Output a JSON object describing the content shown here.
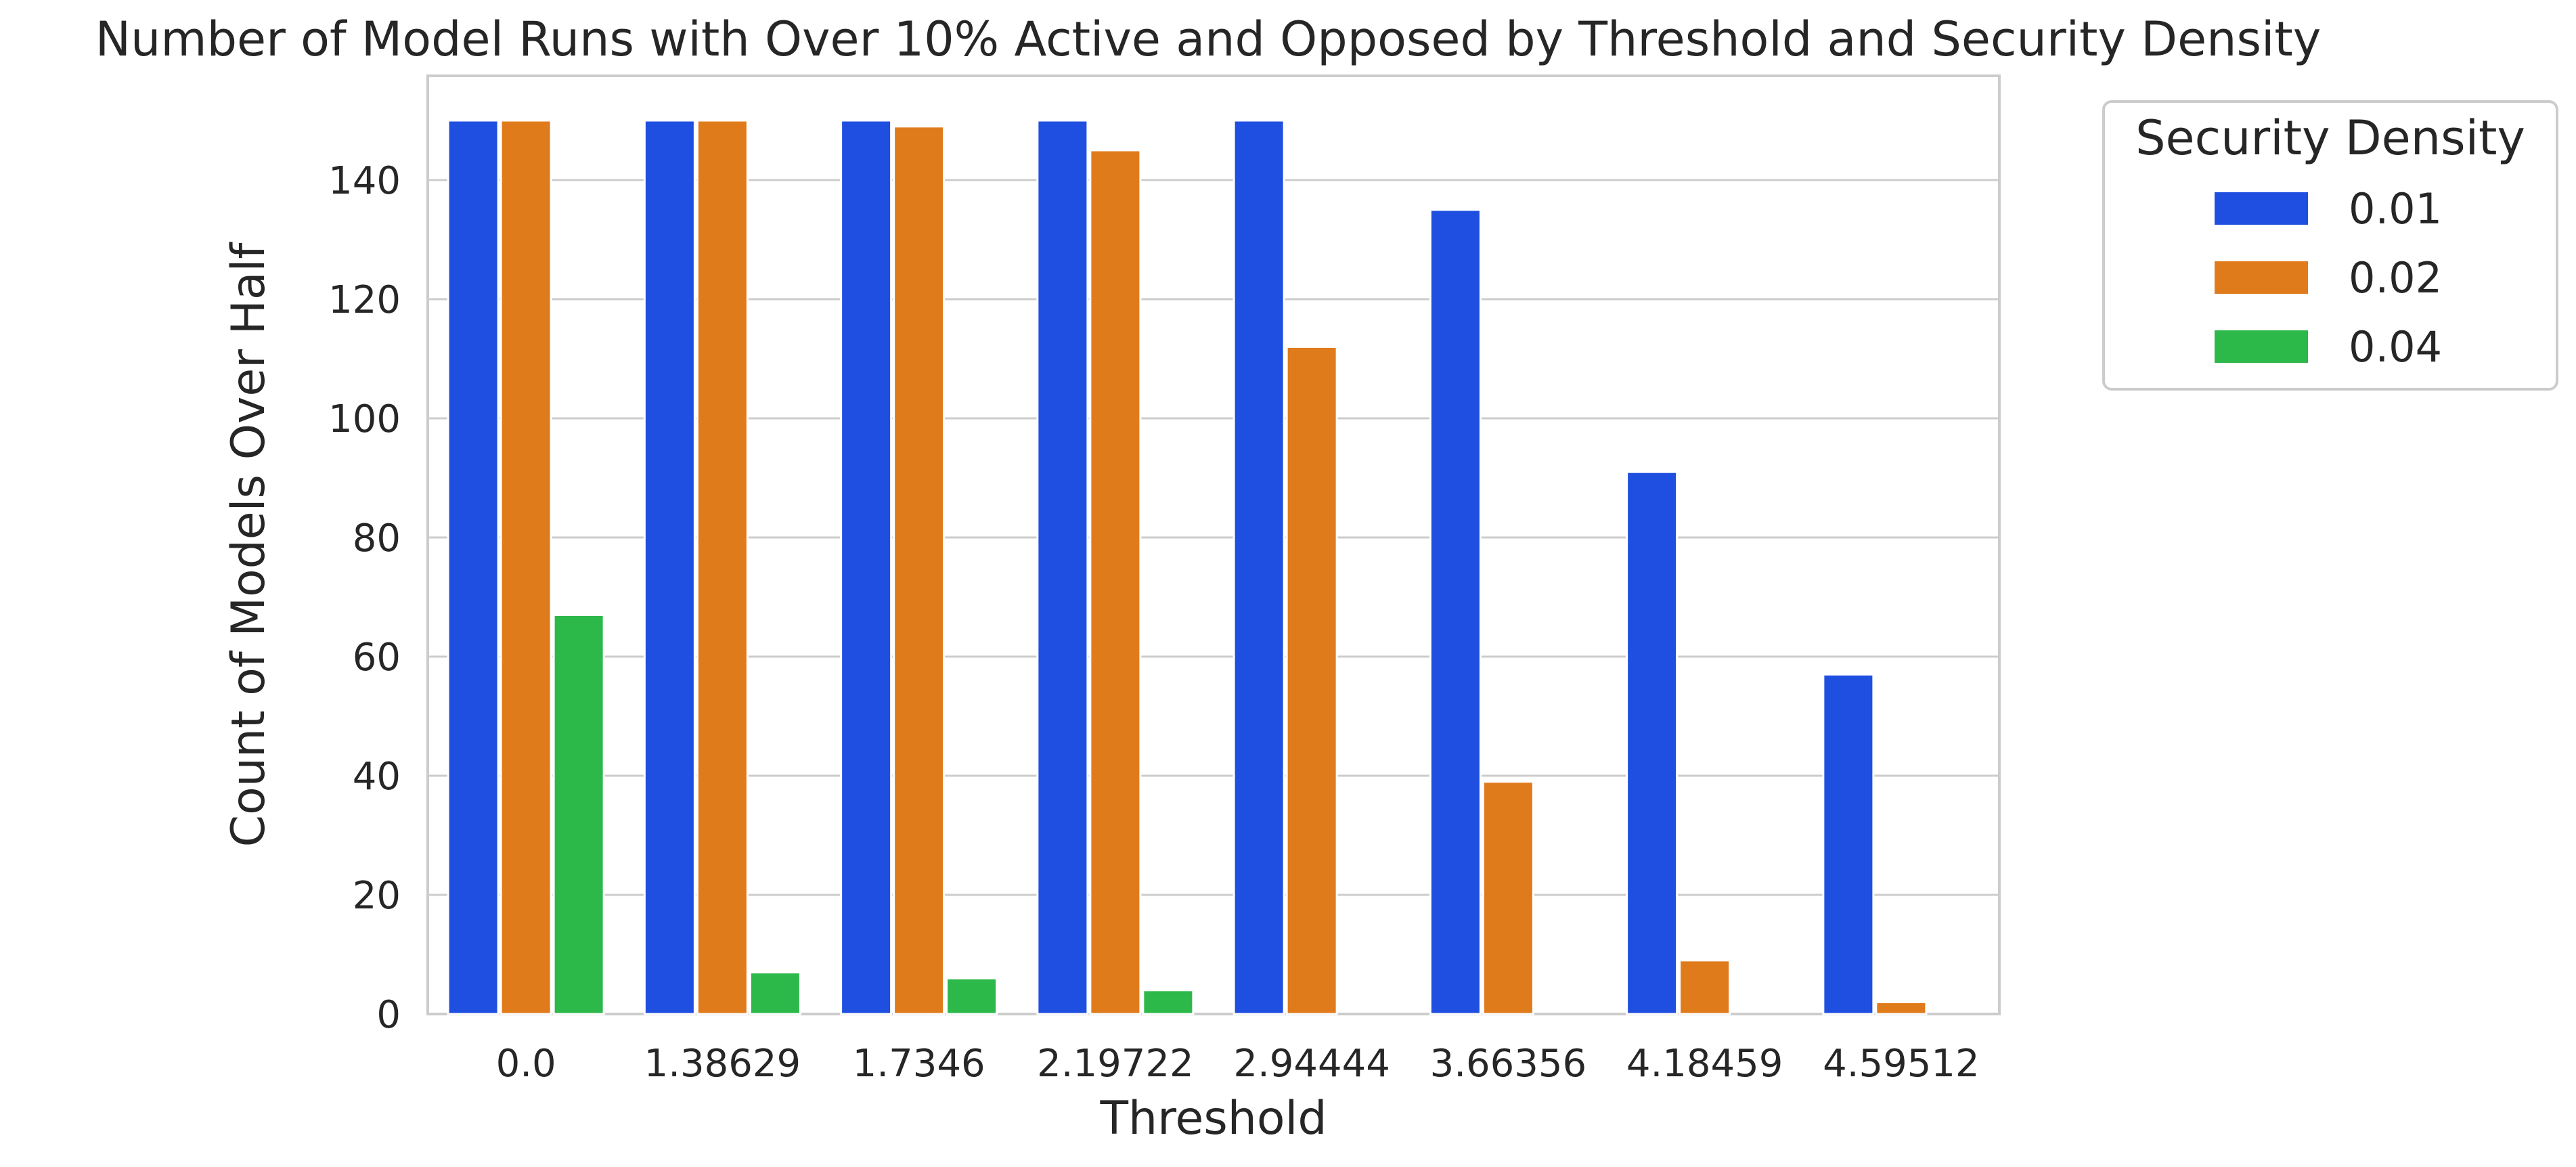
{
  "chart_data": {
    "type": "bar",
    "title": "Number of Model Runs with Over 10% Active and Opposed by Threshold and Security Density",
    "xlabel": "Threshold",
    "ylabel": "Count of Models Over Half",
    "categories": [
      "0.0",
      "1.38629",
      "1.7346",
      "2.19722",
      "2.94444",
      "3.66356",
      "4.18459",
      "4.59512"
    ],
    "yticks": [
      0,
      20,
      40,
      60,
      80,
      100,
      120,
      140
    ],
    "ylim": [
      0,
      157.5
    ],
    "grid": true,
    "legend": {
      "title": "Security Density",
      "placement": "outside-top-right"
    },
    "series": [
      {
        "name": "0.01",
        "color": "#1f4fe0",
        "values": [
          150,
          150,
          150,
          150,
          150,
          135,
          91,
          57
        ]
      },
      {
        "name": "0.02",
        "color": "#e07b1c",
        "values": [
          150,
          150,
          149,
          145,
          112,
          39,
          9,
          2
        ]
      },
      {
        "name": "0.04",
        "color": "#2db84a",
        "values": [
          67,
          7,
          6,
          4,
          0,
          0,
          0,
          0
        ]
      }
    ]
  }
}
